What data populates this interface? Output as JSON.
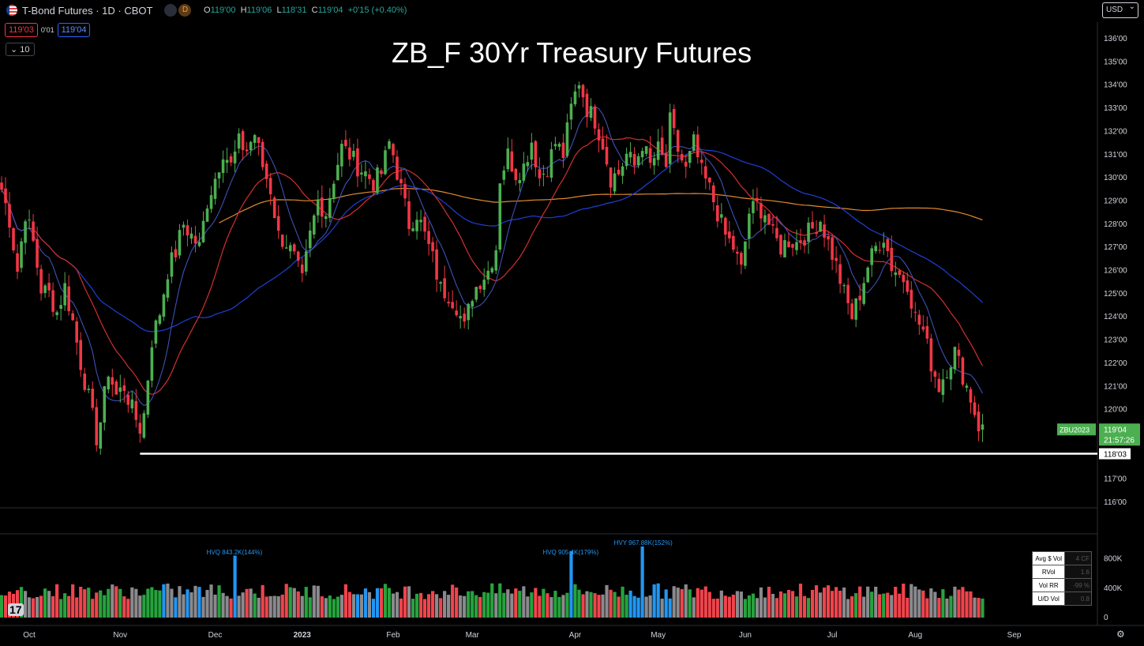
{
  "header": {
    "symbol": "T-Bond Futures · 1D · CBOT",
    "badge_d": "D",
    "ohlc": {
      "o_label": "O",
      "o": "119'00",
      "h_label": "H",
      "h": "119'06",
      "l_label": "L",
      "l": "118'31",
      "c_label": "C",
      "c": "119'04",
      "change": "+0'15 (+0.40%)"
    },
    "bid": "119'03",
    "spread": "0'01",
    "ask": "119'04",
    "length_label": "10",
    "currency": "USD"
  },
  "colors": {
    "up": "#4caf50",
    "down": "#f23645",
    "ma_fast": "#3f51b5",
    "ma_mid": "#d32f2f",
    "ma_slow": "#1e40d8",
    "ma_200": "#e08a2e",
    "vol_up": "#26a33d",
    "vol_down": "#f0444c",
    "vol_grey": "#8a8a8e",
    "vol_blue": "#2196f3"
  },
  "chart_data": {
    "type": "candlestick",
    "title": "ZB_F 30Yr Treasury Futures",
    "ylim": [
      115.5,
      136.5
    ],
    "yticks": [
      "136'00",
      "135'00",
      "134'00",
      "133'00",
      "132'00",
      "131'00",
      "130'00",
      "129'00",
      "128'00",
      "127'00",
      "126'00",
      "125'00",
      "124'00",
      "123'00",
      "122'00",
      "121'00",
      "120'00",
      "119'00",
      "118'00",
      "117'00",
      "116'00"
    ],
    "ytick_values": [
      136,
      135,
      134,
      133,
      132,
      131,
      130,
      129,
      128,
      127,
      126,
      125,
      124,
      123,
      122,
      121,
      120,
      119,
      118,
      117,
      116
    ],
    "xticks": [
      "Oct",
      "Nov",
      "Dec",
      "2023",
      "Feb",
      "Mar",
      "Apr",
      "May",
      "Jun",
      "Jul",
      "Aug",
      "Sep"
    ],
    "xtick_index": [
      7,
      30,
      54,
      76,
      99,
      119,
      145,
      166,
      188,
      210,
      231,
      256
    ],
    "support_level": {
      "value": 118.094,
      "label": "118'03",
      "start_index": 35
    },
    "last_price": {
      "symbol": "ZBU2023",
      "value": 119.125,
      "label": "119'04",
      "countdown": "21:57:26"
    },
    "anchors": [
      [
        0,
        129.5
      ],
      [
        2,
        128.2
      ],
      [
        4,
        126
      ],
      [
        6,
        128.5
      ],
      [
        8,
        127.2
      ],
      [
        10,
        125.2
      ],
      [
        12,
        125
      ],
      [
        14,
        124.2
      ],
      [
        16,
        125.3
      ],
      [
        18,
        123.8
      ],
      [
        20,
        122
      ],
      [
        22,
        120.5
      ],
      [
        24,
        118.8
      ],
      [
        25,
        119.5
      ],
      [
        27,
        121.7
      ],
      [
        29,
        120.6
      ],
      [
        31,
        121
      ],
      [
        33,
        120
      ],
      [
        35,
        119.2
      ],
      [
        36,
        119.8
      ],
      [
        38,
        123
      ],
      [
        40,
        124.2
      ],
      [
        42,
        126
      ],
      [
        44,
        126.8
      ],
      [
        46,
        128
      ],
      [
        48,
        127.5
      ],
      [
        50,
        127
      ],
      [
        52,
        129
      ],
      [
        54,
        130
      ],
      [
        56,
        131.2
      ],
      [
        58,
        130.5
      ],
      [
        60,
        131.5
      ],
      [
        62,
        131.2
      ],
      [
        64,
        131.9
      ],
      [
        66,
        130.5
      ],
      [
        68,
        129.5
      ],
      [
        70,
        127.5
      ],
      [
        72,
        127.2
      ],
      [
        74,
        126.5
      ],
      [
        76,
        125.5
      ],
      [
        78,
        127.5
      ],
      [
        80,
        129
      ],
      [
        82,
        128.5
      ],
      [
        84,
        130
      ],
      [
        86,
        131.3
      ],
      [
        88,
        131
      ],
      [
        90,
        130.5
      ],
      [
        92,
        130.2
      ],
      [
        94,
        129.8
      ],
      [
        96,
        130.2
      ],
      [
        98,
        131.5
      ],
      [
        99,
        131
      ],
      [
        101,
        129.5
      ],
      [
        103,
        128
      ],
      [
        105,
        128.5
      ],
      [
        107,
        127.5
      ],
      [
        109,
        126.5
      ],
      [
        111,
        125.2
      ],
      [
        113,
        125
      ],
      [
        115,
        124.5
      ],
      [
        117,
        123.5
      ],
      [
        119,
        125
      ],
      [
        121,
        125.6
      ],
      [
        123,
        126
      ],
      [
        125,
        127
      ],
      [
        126,
        130
      ],
      [
        128,
        131
      ],
      [
        130,
        130.2
      ],
      [
        132,
        130.5
      ],
      [
        134,
        131.6
      ],
      [
        136,
        130
      ],
      [
        138,
        130.5
      ],
      [
        140,
        131.5
      ],
      [
        142,
        131
      ],
      [
        144,
        133
      ],
      [
        146,
        134.2
      ],
      [
        148,
        133
      ],
      [
        150,
        132.5
      ],
      [
        152,
        131.5
      ],
      [
        154,
        130
      ],
      [
        156,
        130.2
      ],
      [
        158,
        131
      ],
      [
        160,
        130.5
      ],
      [
        162,
        131.5
      ],
      [
        164,
        130.5
      ],
      [
        166,
        131.2
      ],
      [
        168,
        130.5
      ],
      [
        169,
        132.4
      ],
      [
        171,
        131.2
      ],
      [
        173,
        130.3
      ],
      [
        175,
        131.5
      ],
      [
        177,
        130.2
      ],
      [
        179,
        129.5
      ],
      [
        181,
        128.5
      ],
      [
        183,
        127.5
      ],
      [
        185,
        127
      ],
      [
        187,
        126
      ],
      [
        189,
        128.5
      ],
      [
        191,
        128.8
      ],
      [
        193,
        128.5
      ],
      [
        195,
        127.5
      ],
      [
        197,
        127
      ],
      [
        199,
        127.3
      ],
      [
        201,
        127.2
      ],
      [
        203,
        127.5
      ],
      [
        205,
        127.8
      ],
      [
        207,
        128.2
      ],
      [
        209,
        127.2
      ],
      [
        211,
        126.2
      ],
      [
        213,
        125
      ],
      [
        215,
        124
      ],
      [
        217,
        125
      ],
      [
        219,
        126.2
      ],
      [
        221,
        127
      ],
      [
        223,
        127.5
      ],
      [
        225,
        126.2
      ],
      [
        227,
        125.8
      ],
      [
        229,
        125.5
      ],
      [
        231,
        124
      ],
      [
        233,
        123.4
      ],
      [
        235,
        122
      ],
      [
        237,
        121
      ],
      [
        239,
        121.8
      ],
      [
        241,
        122.5
      ],
      [
        243,
        121.5
      ],
      [
        245,
        120.5
      ],
      [
        247,
        119.3
      ],
      [
        248,
        119.15
      ]
    ],
    "volume": {
      "ylim": [
        0,
        1000000
      ],
      "yticks": [
        "800K",
        "400K",
        "0"
      ],
      "ytick_values": [
        800000,
        400000,
        0
      ],
      "annotations": [
        {
          "index": 59,
          "text": "HVQ 843.2K(144%)"
        },
        {
          "index": 144,
          "text": "HVQ 905.4K(179%)"
        },
        {
          "index": 162,
          "text": "HVY 967.88K(152%)"
        }
      ],
      "base": 360000
    },
    "stats_panel": [
      {
        "label": "Avg $ Vol",
        "value": "4 CF"
      },
      {
        "label": "RVol",
        "value": "1.6"
      },
      {
        "label": "Vol RR",
        "value": "-99 %"
      },
      {
        "label": "U/D Vol",
        "value": "0.8"
      }
    ]
  }
}
